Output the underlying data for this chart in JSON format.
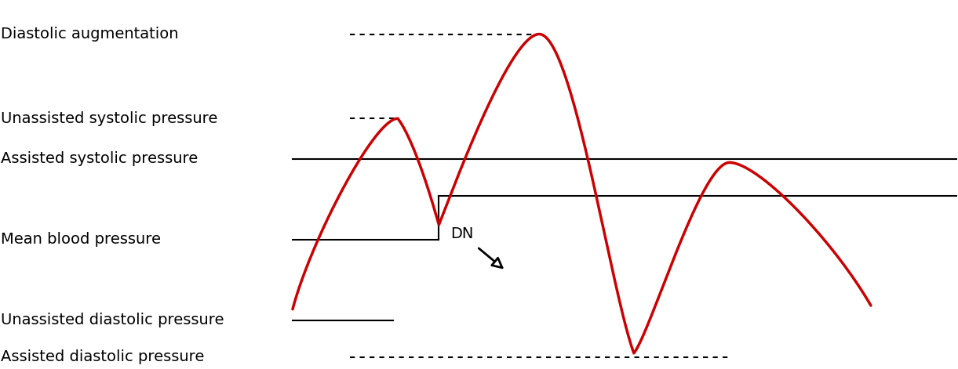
{
  "bg_color": "#ffffff",
  "wave_color": "#cc0000",
  "line_color": "#000000",
  "text_color": "#000000",
  "labels": {
    "diastolic_augmentation": "Diastolic augmentation",
    "unassisted_systolic": "Unassisted systolic pressure",
    "assisted_systolic": "Assisted systolic pressure",
    "mean_blood": "Mean blood pressure",
    "unassisted_diastolic": "Unassisted diastolic pressure",
    "assisted_diastolic": "Assisted diastolic pressure",
    "dn": "DN"
  },
  "y_levels": {
    "diastolic_aug": 0.91,
    "unassisted_systolic": 0.68,
    "assisted_systolic": 0.57,
    "mean_bp": 0.35,
    "mean_bp2": 0.47,
    "unassisted_diastolic": 0.13,
    "assisted_diastolic": 0.03
  },
  "font_size": 14
}
